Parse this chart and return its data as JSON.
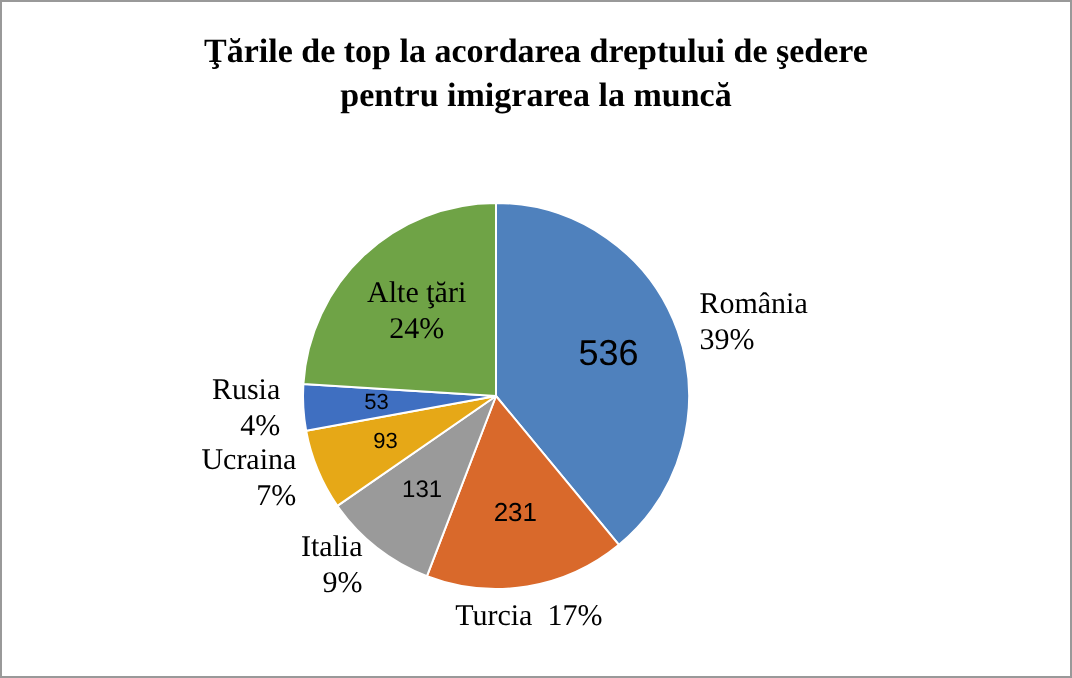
{
  "chart_data": {
    "type": "pie",
    "title": "Ţările de top la acordarea dreptului de şedere pentru imigrarea la muncă",
    "categories": [
      "România",
      "Turcia",
      "Italia",
      "Ucraina",
      "Rusia",
      "Alte ţări"
    ],
    "values": [
      536,
      231,
      131,
      93,
      53,
      330
    ],
    "value_labels": [
      "536",
      "231",
      "131",
      "93",
      "53",
      null
    ],
    "colors": [
      "#4f81bd",
      "#d9692b",
      "#9a9a9a",
      "#e6a817",
      "#3f6fc1",
      "#6fa346"
    ],
    "annotations": [
      "39%",
      "17%",
      "9%",
      "7%",
      "4%",
      "24%"
    ],
    "legend": false
  }
}
